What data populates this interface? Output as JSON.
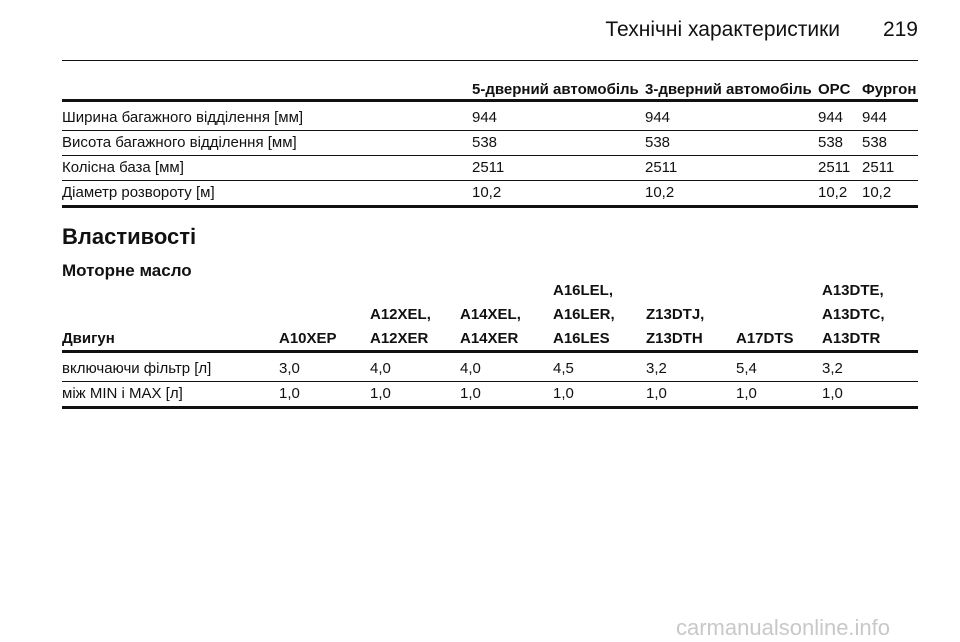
{
  "header": {
    "title": "Технічні характеристики",
    "page": "219"
  },
  "table1": {
    "columns": [
      "5-дверний автомобіль",
      "3-дверний автомобіль",
      "OPC",
      "Фургон"
    ],
    "rows": [
      [
        "Ширина багажного відділення [мм]",
        "944",
        "944",
        "944",
        "944"
      ],
      [
        "Висота багажного відділення [мм]",
        "538",
        "538",
        "538",
        "538"
      ],
      [
        "Колісна база [мм]",
        "2511",
        "2511",
        "2511",
        "2511"
      ],
      [
        "Діаметр розвороту [м]",
        "10,2",
        "10,2",
        "10,2",
        "10,2"
      ]
    ]
  },
  "section": {
    "title": "Властивості",
    "subtitle": "Моторне масло"
  },
  "table2": {
    "columns": [
      "Двигун",
      "A10XEP",
      "A12XEL,\nA12XER",
      "A14XEL,\nA14XER",
      "A16LEL,\nA16LER,\nA16LES",
      "Z13DTJ,\nZ13DTH",
      "A17DTS",
      "A13DTE,\nA13DTC,\nA13DTR"
    ],
    "rows": [
      [
        "включаючи фільтр [л]",
        "3,0",
        "4,0",
        "4,0",
        "4,5",
        "3,2",
        "5,4",
        "3,2"
      ],
      [
        "між MIN і MAX [л]",
        "1,0",
        "1,0",
        "1,0",
        "1,0",
        "1,0",
        "1,0",
        "1,0"
      ]
    ]
  },
  "watermark": "carmanualsonline.info"
}
